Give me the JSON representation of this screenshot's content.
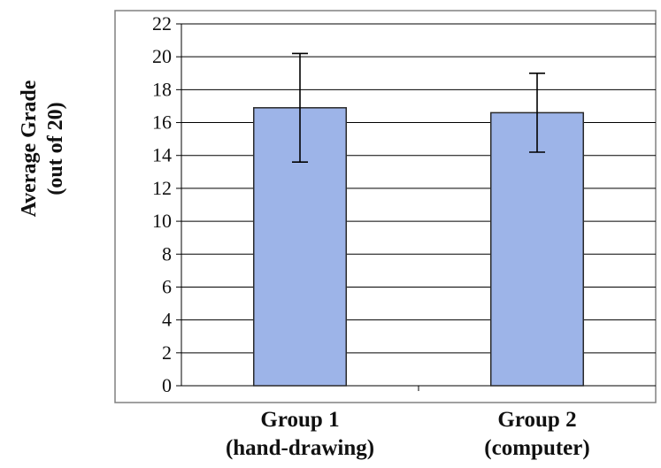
{
  "chart_data": {
    "type": "bar",
    "title": "",
    "xlabel": "",
    "ylabel": [
      "Average Grade",
      "(out of 20)"
    ],
    "categories": [
      [
        "Group 1",
        "(hand-drawing)"
      ],
      [
        "Group 2",
        "(computer)"
      ]
    ],
    "values": [
      16.9,
      16.6
    ],
    "error_low": [
      13.6,
      14.2
    ],
    "error_high": [
      20.2,
      19.0
    ],
    "ylim": [
      0,
      22
    ],
    "yticks": [
      0,
      2,
      4,
      6,
      8,
      10,
      12,
      14,
      16,
      18,
      20,
      22
    ],
    "grid": true,
    "legend": "none",
    "colors": {
      "bar_fill": "#9db4e8",
      "bar_stroke": "#2a2a2a",
      "grid": "#000000",
      "plot_border": "#808080"
    }
  }
}
